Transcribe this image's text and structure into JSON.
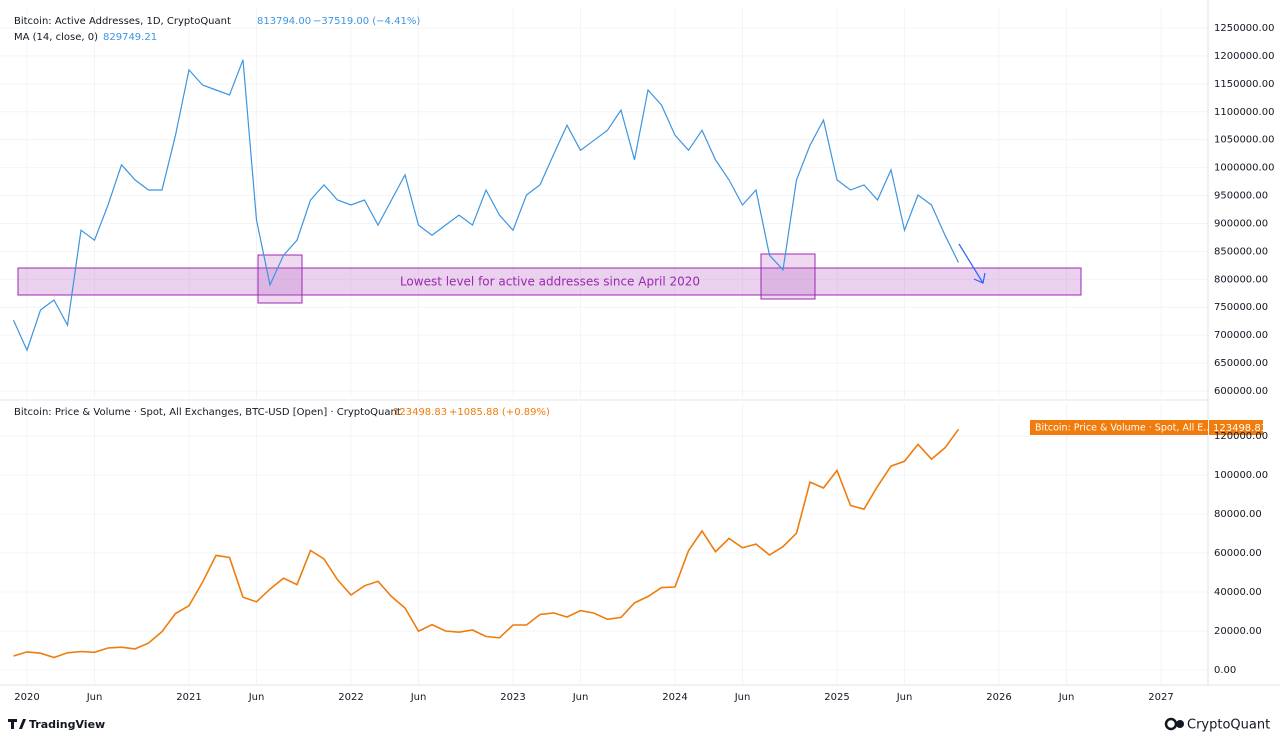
{
  "chart_data": [
    {
      "type": "line",
      "title": "Bitcoin: Active Addresses, 1D, CryptoQuant",
      "title_values": [
        "813794.00",
        "−37519.00 (−4.41%)"
      ],
      "x": [
        "2019-12",
        "2020-01",
        "2020-02",
        "2020-03",
        "2020-04",
        "2020-05",
        "2020-06",
        "2020-07",
        "2020-08",
        "2020-09",
        "2020-10",
        "2020-11",
        "2020-12",
        "2021-01",
        "2021-02",
        "2021-03",
        "2021-04",
        "2021-05",
        "2021-06",
        "2021-07",
        "2021-08",
        "2021-09",
        "2021-10",
        "2021-11",
        "2021-12",
        "2022-01",
        "2022-02",
        "2022-03",
        "2022-04",
        "2022-05",
        "2022-06",
        "2022-07",
        "2022-08",
        "2022-09",
        "2022-10",
        "2022-11",
        "2022-12",
        "2023-01",
        "2023-02",
        "2023-03",
        "2023-04",
        "2023-05",
        "2023-06",
        "2023-07",
        "2023-08",
        "2023-09",
        "2023-10",
        "2023-11",
        "2023-12",
        "2024-01",
        "2024-02",
        "2024-03",
        "2024-04",
        "2024-05",
        "2024-06",
        "2024-07",
        "2024-08",
        "2024-09",
        "2024-10",
        "2024-11",
        "2024-12",
        "2025-01",
        "2025-02",
        "2025-03",
        "2025-04",
        "2025-05",
        "2025-06",
        "2025-07",
        "2025-08",
        "2025-09",
        "2025-10"
      ],
      "series": [
        {
          "name": "MA (14, close, 0)",
          "legend_value": "829749.21",
          "color": "#3d95e0",
          "values": [
            727000,
            673000,
            745000,
            763000,
            718000,
            888000,
            870000,
            933000,
            1005000,
            978000,
            960000,
            960000,
            1058000,
            1175000,
            1148000,
            1139000,
            1130000,
            1193000,
            906000,
            790000,
            843000,
            870000,
            942000,
            969000,
            942000,
            933000,
            942000,
            897000,
            942000,
            987000,
            897000,
            879000,
            897000,
            915000,
            897000,
            960000,
            915000,
            888000,
            951000,
            969000,
            1023000,
            1076000,
            1031000,
            1049000,
            1067000,
            1103000,
            1014000,
            1139000,
            1112000,
            1058000,
            1031000,
            1067000,
            1014000,
            978000,
            933000,
            960000,
            843000,
            817000,
            978000,
            1040000,
            1085000,
            978000,
            960000,
            969000,
            942000,
            996000,
            888000,
            951000,
            933000,
            879000,
            830000
          ]
        }
      ],
      "annotation": "Lowest level for active addresses since April 2020",
      "ylim": [
        587500,
        1285800
      ],
      "yticks": [
        {
          "value": 600000,
          "label": "600000.00"
        },
        {
          "value": 650000,
          "label": "650000.00"
        },
        {
          "value": 700000,
          "label": "700000.00"
        },
        {
          "value": 750000,
          "label": "750000.00"
        },
        {
          "value": 800000,
          "label": "800000.00"
        },
        {
          "value": 850000,
          "label": "850000.00"
        },
        {
          "value": 900000,
          "label": "900000.00"
        },
        {
          "value": 950000,
          "label": "950000.00"
        },
        {
          "value": 1000000,
          "label": "1000000.00"
        },
        {
          "value": 1050000,
          "label": "1050000.00"
        },
        {
          "value": 1100000,
          "label": "1100000.00"
        },
        {
          "value": 1150000,
          "label": "1150000.00"
        },
        {
          "value": 1200000,
          "label": "1200000.00"
        },
        {
          "value": 1250000,
          "label": "1250000.00"
        }
      ],
      "grid": true
    },
    {
      "type": "line",
      "title_values": [
        "123498.83",
        "+1085.88 (+0.89%)"
      ],
      "price_label": "Bitcoin: Price & Volume · Spot, All E...",
      "x": [
        "2019-12",
        "2020-01",
        "2020-02",
        "2020-03",
        "2020-04",
        "2020-05",
        "2020-06",
        "2020-07",
        "2020-08",
        "2020-09",
        "2020-10",
        "2020-11",
        "2020-12",
        "2021-01",
        "2021-02",
        "2021-03",
        "2021-04",
        "2021-05",
        "2021-06",
        "2021-07",
        "2021-08",
        "2021-09",
        "2021-10",
        "2021-11",
        "2021-12",
        "2022-01",
        "2022-02",
        "2022-03",
        "2022-04",
        "2022-05",
        "2022-06",
        "2022-07",
        "2022-08",
        "2022-09",
        "2022-10",
        "2022-11",
        "2022-12",
        "2023-01",
        "2023-02",
        "2023-03",
        "2023-04",
        "2023-05",
        "2023-06",
        "2023-07",
        "2023-08",
        "2023-09",
        "2023-10",
        "2023-11",
        "2023-12",
        "2024-01",
        "2024-02",
        "2024-03",
        "2024-04",
        "2024-05",
        "2024-06",
        "2024-07",
        "2024-08",
        "2024-09",
        "2024-10",
        "2024-11",
        "2024-12",
        "2025-01",
        "2025-02",
        "2025-03",
        "2025-04",
        "2025-05",
        "2025-06",
        "2025-07",
        "2025-08",
        "2025-09",
        "2025-10"
      ],
      "series": [
        {
          "name": "Bitcoin: Price & Volume · Spot, All Exchanges, BTC-USD [Open] · CryptoQuant",
          "color": "#ef7c0c",
          "values": [
            7200,
            9300,
            8600,
            6400,
            8800,
            9500,
            9100,
            11300,
            11700,
            10800,
            13800,
            19700,
            29000,
            33000,
            45000,
            58800,
            57700,
            37300,
            35000,
            41500,
            47100,
            43800,
            61300,
            57000,
            46300,
            38500,
            43200,
            45500,
            37700,
            31800,
            19900,
            23300,
            20000,
            19400,
            20500,
            17200,
            16500,
            23100,
            23100,
            28500,
            29300,
            27200,
            30500,
            29200,
            26000,
            27000,
            34500,
            37700,
            42300,
            42600,
            61200,
            71300,
            60700,
            67500,
            62700,
            64600,
            59000,
            63300,
            70200,
            96400,
            93400,
            102400,
            84400,
            82500,
            94200,
            104600,
            107100,
            115800,
            108200,
            114000,
            123498.83
          ]
        }
      ],
      "ylim": [
        -7700,
        137000
      ],
      "yticks": [
        {
          "value": 0,
          "label": "0.00"
        },
        {
          "value": 20000,
          "label": "20000.00"
        },
        {
          "value": 40000,
          "label": "40000.00"
        },
        {
          "value": 60000,
          "label": "60000.00"
        },
        {
          "value": 80000,
          "label": "80000.00"
        },
        {
          "value": 100000,
          "label": "100000.00"
        },
        {
          "value": 120000,
          "label": "120000.00"
        }
      ],
      "xticks": [
        {
          "value": "2020-01",
          "label": "2020"
        },
        {
          "value": "2020-06",
          "label": "Jun"
        },
        {
          "value": "2021-01",
          "label": "2021"
        },
        {
          "value": "2021-06",
          "label": "Jun"
        },
        {
          "value": "2022-01",
          "label": "2022"
        },
        {
          "value": "2022-06",
          "label": "Jun"
        },
        {
          "value": "2023-01",
          "label": "2023"
        },
        {
          "value": "2023-06",
          "label": "Jun"
        },
        {
          "value": "2024-01",
          "label": "2024"
        },
        {
          "value": "2024-06",
          "label": "Jun"
        },
        {
          "value": "2025-01",
          "label": "2025"
        },
        {
          "value": "2025-06",
          "label": "Jun"
        },
        {
          "value": "2026-01",
          "label": "2026"
        },
        {
          "value": "2026-06",
          "label": "Jun"
        },
        {
          "value": "2027-01",
          "label": "2027"
        }
      ],
      "grid": true
    }
  ],
  "footer": {
    "left": "TradingView",
    "right": "CryptoQuant"
  }
}
